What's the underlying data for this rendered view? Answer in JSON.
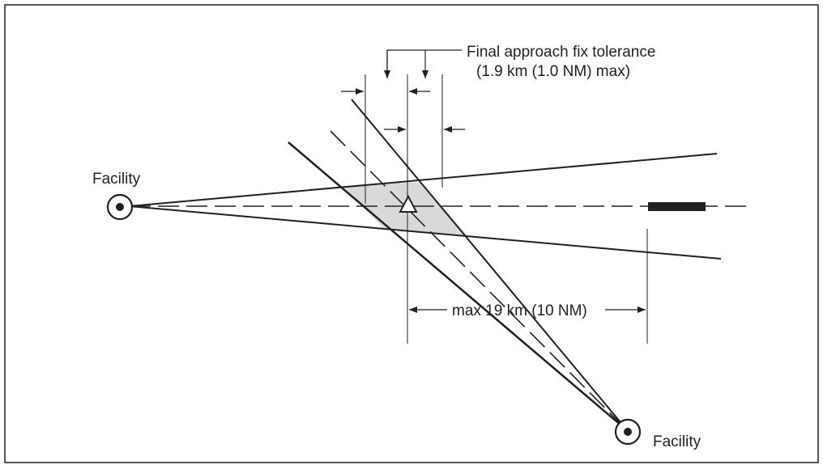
{
  "diagram": {
    "labels": {
      "facility_left": "Facility",
      "facility_bottom": "Facility",
      "fix_tolerance_line1": "Final approach fix tolerance",
      "fix_tolerance_line2": "(1.9 km (1.0 NM) max)",
      "max_distance": "max 19 km (10 NM)"
    },
    "colors": {
      "line": "#231f20",
      "tolerance_area": "#d9d9d9",
      "background": "#ffffff"
    }
  }
}
